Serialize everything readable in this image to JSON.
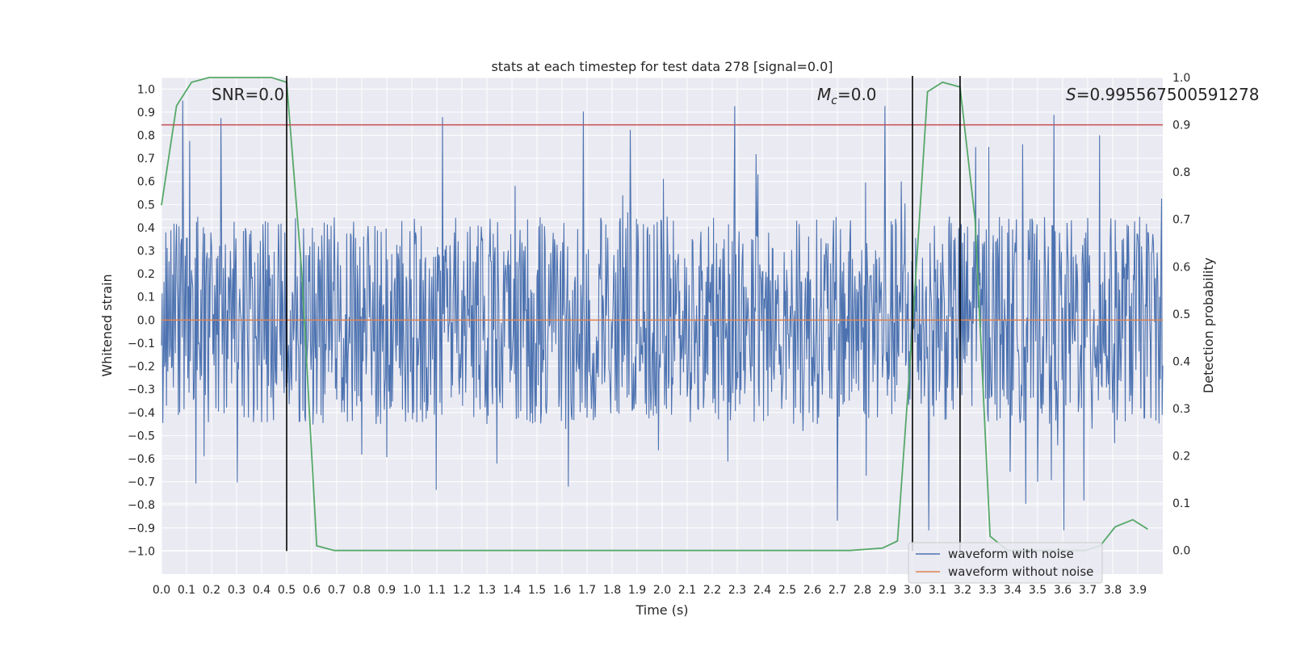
{
  "chart_data": {
    "type": "line",
    "title": "stats at each timestep for test data 278 [signal=0.0]",
    "xlabel": "Time (s)",
    "ylabel": "Whitened strain",
    "y2label": "Detection probability",
    "xlim": [
      0.0,
      4.0
    ],
    "ylim": [
      -1.1,
      1.05
    ],
    "y2lim": [
      -0.05,
      1.0
    ],
    "x_ticks": [
      "0.0",
      "0.1",
      "0.2",
      "0.3",
      "0.4",
      "0.5",
      "0.6",
      "0.7",
      "0.8",
      "0.9",
      "1.0",
      "1.1",
      "1.2",
      "1.3",
      "1.4",
      "1.5",
      "1.6",
      "1.7",
      "1.8",
      "1.9",
      "2.0",
      "2.1",
      "2.2",
      "2.3",
      "2.4",
      "2.5",
      "2.6",
      "2.7",
      "2.8",
      "2.9",
      "3.0",
      "3.1",
      "3.2",
      "3.3",
      "3.4",
      "3.5",
      "3.6",
      "3.7",
      "3.8",
      "3.9"
    ],
    "y_ticks": [
      "−1.0",
      "−0.9",
      "−0.8",
      "−0.7",
      "−0.6",
      "−0.5",
      "−0.4",
      "−0.3",
      "−0.2",
      "−0.1",
      "0.0",
      "0.1",
      "0.2",
      "0.3",
      "0.4",
      "0.5",
      "0.6",
      "0.7",
      "0.8",
      "0.9",
      "1.0"
    ],
    "y2_ticks": [
      "0.0",
      "0.1",
      "0.2",
      "0.3",
      "0.4",
      "0.5",
      "0.6",
      "0.7",
      "0.8",
      "0.9",
      "1.0"
    ],
    "grid": true,
    "legend_position": "lower-right",
    "series": [
      {
        "name": "waveform with noise",
        "color": "#4c72b0",
        "description_of_values": "dense noise",
        "typical_band": [
          -0.45,
          0.45
        ],
        "envelope_max": 0.96,
        "envelope_min": -0.91
      },
      {
        "name": "waveform without noise",
        "color": "#dd8452",
        "x": [
          0.0,
          4.0
        ],
        "y": [
          0.0,
          0.0
        ]
      }
    ],
    "detection_probability": {
      "color": "#55a868",
      "x": [
        0.0,
        0.06,
        0.12,
        0.19,
        0.25,
        0.31,
        0.38,
        0.44,
        0.5,
        0.56,
        0.62,
        0.69,
        0.75,
        0.81,
        0.88,
        0.94,
        1.0,
        1.25,
        1.5,
        2.0,
        2.5,
        2.75,
        2.88,
        2.94,
        3.0,
        3.06,
        3.12,
        3.19,
        3.25,
        3.31,
        3.38,
        3.44,
        3.5,
        3.56,
        3.62,
        3.69,
        3.75,
        3.81,
        3.88,
        3.94
      ],
      "y": [
        0.73,
        0.94,
        0.99,
        1.0,
        1.0,
        1.0,
        1.0,
        1.0,
        0.99,
        0.59,
        0.01,
        0.0,
        0.0,
        0.0,
        0.0,
        0.0,
        0.0,
        0.0,
        0.0,
        0.0,
        0.0,
        0.0,
        0.005,
        0.02,
        0.47,
        0.97,
        0.99,
        0.98,
        0.7,
        0.03,
        0.0,
        0.0,
        0.0,
        0.0,
        0.0,
        0.0,
        0.01,
        0.05,
        0.065,
        0.045
      ]
    },
    "threshold": {
      "color": "#c44e52",
      "y2": 0.9
    },
    "vertical_lines": [
      0.5,
      3.0,
      3.19
    ],
    "annotations": {
      "snr": "SNR=0.0",
      "mc_symbol": "M",
      "mc_sub": "c",
      "mc_value": "=0.0",
      "s_symbol": "S",
      "s_value": "=0.995567500591278"
    }
  }
}
